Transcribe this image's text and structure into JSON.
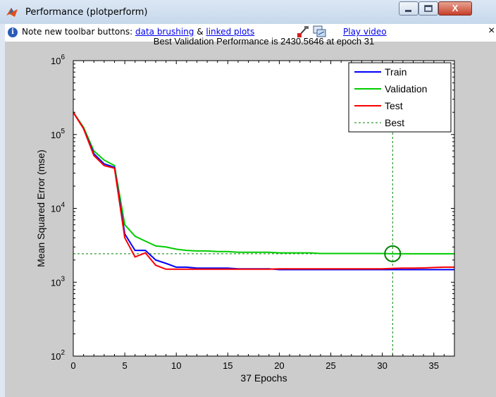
{
  "window": {
    "title": "Performance (plotperform)",
    "close_glyph": "X"
  },
  "infobar": {
    "note_prefix": "Note new toolbar buttons: ",
    "data_brushing": "data brushing",
    "amp": " & ",
    "linked_plots": "linked plots",
    "play_video": "Play video",
    "close_glyph": "×",
    "info_glyph": "i",
    "icons": [
      "info-icon",
      "brush-icon",
      "linked-plots-icon"
    ]
  },
  "chart_data": {
    "type": "line",
    "title": "Best Validation Performance is 2430.5646 at epoch 31",
    "xlabel": "37 Epochs",
    "ylabel": "Mean Squared Error  (mse)",
    "xlim": [
      0,
      37
    ],
    "ylim": [
      100,
      1000000
    ],
    "yscale": "log",
    "x_ticks": [
      "0",
      "5",
      "10",
      "15",
      "20",
      "25",
      "30",
      "35"
    ],
    "x_tick_values": [
      0,
      5,
      10,
      15,
      20,
      25,
      30,
      35
    ],
    "y_tick_exponents": [
      2,
      3,
      4,
      5,
      6
    ],
    "y_tick_base": "10",
    "legend_position": "top-right",
    "grid": false,
    "series": [
      {
        "name": "Train",
        "color": "#0000ff",
        "x": [
          0,
          1,
          2,
          3,
          4,
          5,
          6,
          7,
          8,
          9,
          10,
          11,
          12,
          13,
          14,
          15,
          16,
          17,
          18,
          19,
          20,
          21,
          22,
          23,
          24,
          25,
          26,
          27,
          28,
          29,
          30,
          31,
          32,
          33,
          34,
          35,
          36,
          37
        ],
        "y": [
          200000,
          120000,
          55000,
          40000,
          36000,
          4500,
          2700,
          2700,
          2000,
          1800,
          1600,
          1600,
          1550,
          1550,
          1550,
          1550,
          1520,
          1520,
          1520,
          1520,
          1480,
          1480,
          1480,
          1480,
          1480,
          1480,
          1480,
          1480,
          1480,
          1480,
          1480,
          1480,
          1480,
          1480,
          1480,
          1480,
          1480,
          1480
        ]
      },
      {
        "name": "Validation",
        "color": "#00cc00",
        "x": [
          0,
          1,
          2,
          3,
          4,
          5,
          6,
          7,
          8,
          9,
          10,
          11,
          12,
          13,
          14,
          15,
          16,
          17,
          18,
          19,
          20,
          21,
          22,
          23,
          24,
          25,
          26,
          27,
          28,
          29,
          30,
          31,
          32,
          33,
          34,
          35,
          36,
          37
        ],
        "y": [
          200000,
          125000,
          60000,
          45000,
          38000,
          6000,
          4200,
          3600,
          3100,
          3000,
          2800,
          2700,
          2650,
          2650,
          2600,
          2600,
          2550,
          2550,
          2550,
          2550,
          2500,
          2500,
          2500,
          2500,
          2450,
          2450,
          2450,
          2450,
          2450,
          2450,
          2450,
          2430,
          2430,
          2430,
          2430,
          2430,
          2430,
          2430
        ]
      },
      {
        "name": "Test",
        "color": "#ff0000",
        "x": [
          0,
          1,
          2,
          3,
          4,
          5,
          6,
          7,
          8,
          9,
          10,
          11,
          12,
          13,
          14,
          15,
          16,
          17,
          18,
          19,
          20,
          21,
          22,
          23,
          24,
          25,
          26,
          27,
          28,
          29,
          30,
          31,
          32,
          33,
          34,
          35,
          36,
          37
        ],
        "y": [
          200000,
          120000,
          52000,
          38000,
          35000,
          4000,
          2200,
          2500,
          1700,
          1500,
          1500,
          1500,
          1500,
          1500,
          1500,
          1500,
          1500,
          1500,
          1500,
          1500,
          1520,
          1520,
          1520,
          1520,
          1520,
          1520,
          1520,
          1520,
          1520,
          1520,
          1520,
          1540,
          1550,
          1550,
          1560,
          1580,
          1600,
          1600
        ]
      },
      {
        "name": "Best",
        "color": "#008000",
        "style": "dashed",
        "best_epoch": 31,
        "best_value": 2430.5646
      }
    ]
  }
}
